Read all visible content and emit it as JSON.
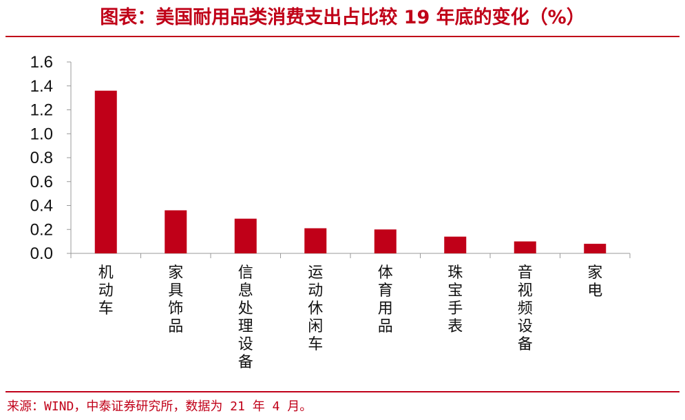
{
  "title": "图表：美国耐用品类消费支出占比较 19 年底的变化（%）",
  "source": "来源：WIND，中泰证券研究所，数据为 21 年 4 月。",
  "colors": {
    "accent": "#C00018",
    "bar": "#C00018",
    "axis": "#999999",
    "text": "#111111"
  },
  "chart_data": {
    "type": "bar",
    "title": "图表：美国耐用品类消费支出占比较 19 年底的变化（%）",
    "categories": [
      "机动车",
      "家具饰品",
      "信息处理设备",
      "运动休闲车",
      "体育用品",
      "珠宝手表",
      "音视频设备",
      "家电"
    ],
    "values": [
      1.36,
      0.36,
      0.29,
      0.21,
      0.2,
      0.14,
      0.1,
      0.08
    ],
    "yticks": [
      "0.0",
      "0.2",
      "0.4",
      "0.6",
      "0.8",
      "1.0",
      "1.2",
      "1.4",
      "1.6"
    ],
    "ylim": [
      0,
      1.6
    ],
    "xlabel": "",
    "ylabel": "",
    "grid": false,
    "legend": "none"
  }
}
